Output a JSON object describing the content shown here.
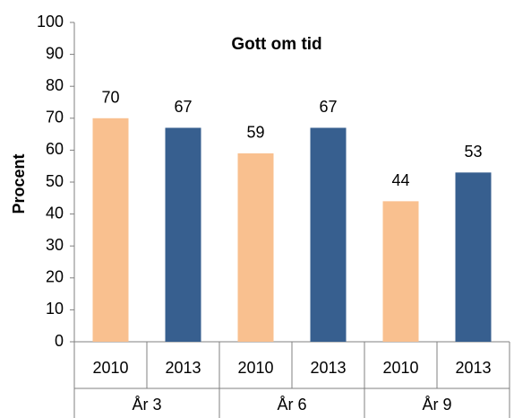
{
  "chart_data": {
    "type": "bar",
    "title": "Gott om tid",
    "y_label": "Procent",
    "categories": [
      "2010",
      "2013",
      "2010",
      "2013",
      "2010",
      "2013"
    ],
    "groups": [
      "År 3",
      "År 6",
      "År 9"
    ],
    "values": [
      70,
      67,
      59,
      67,
      44,
      53
    ],
    "colors": [
      "#f9c08f",
      "#375f8f",
      "#f9c08f",
      "#375f8f",
      "#f9c08f",
      "#375f8f"
    ],
    "ylim": [
      0,
      100
    ],
    "yticks": [
      0,
      10,
      20,
      30,
      40,
      50,
      60,
      70,
      80,
      90,
      100
    ],
    "grid": false
  }
}
